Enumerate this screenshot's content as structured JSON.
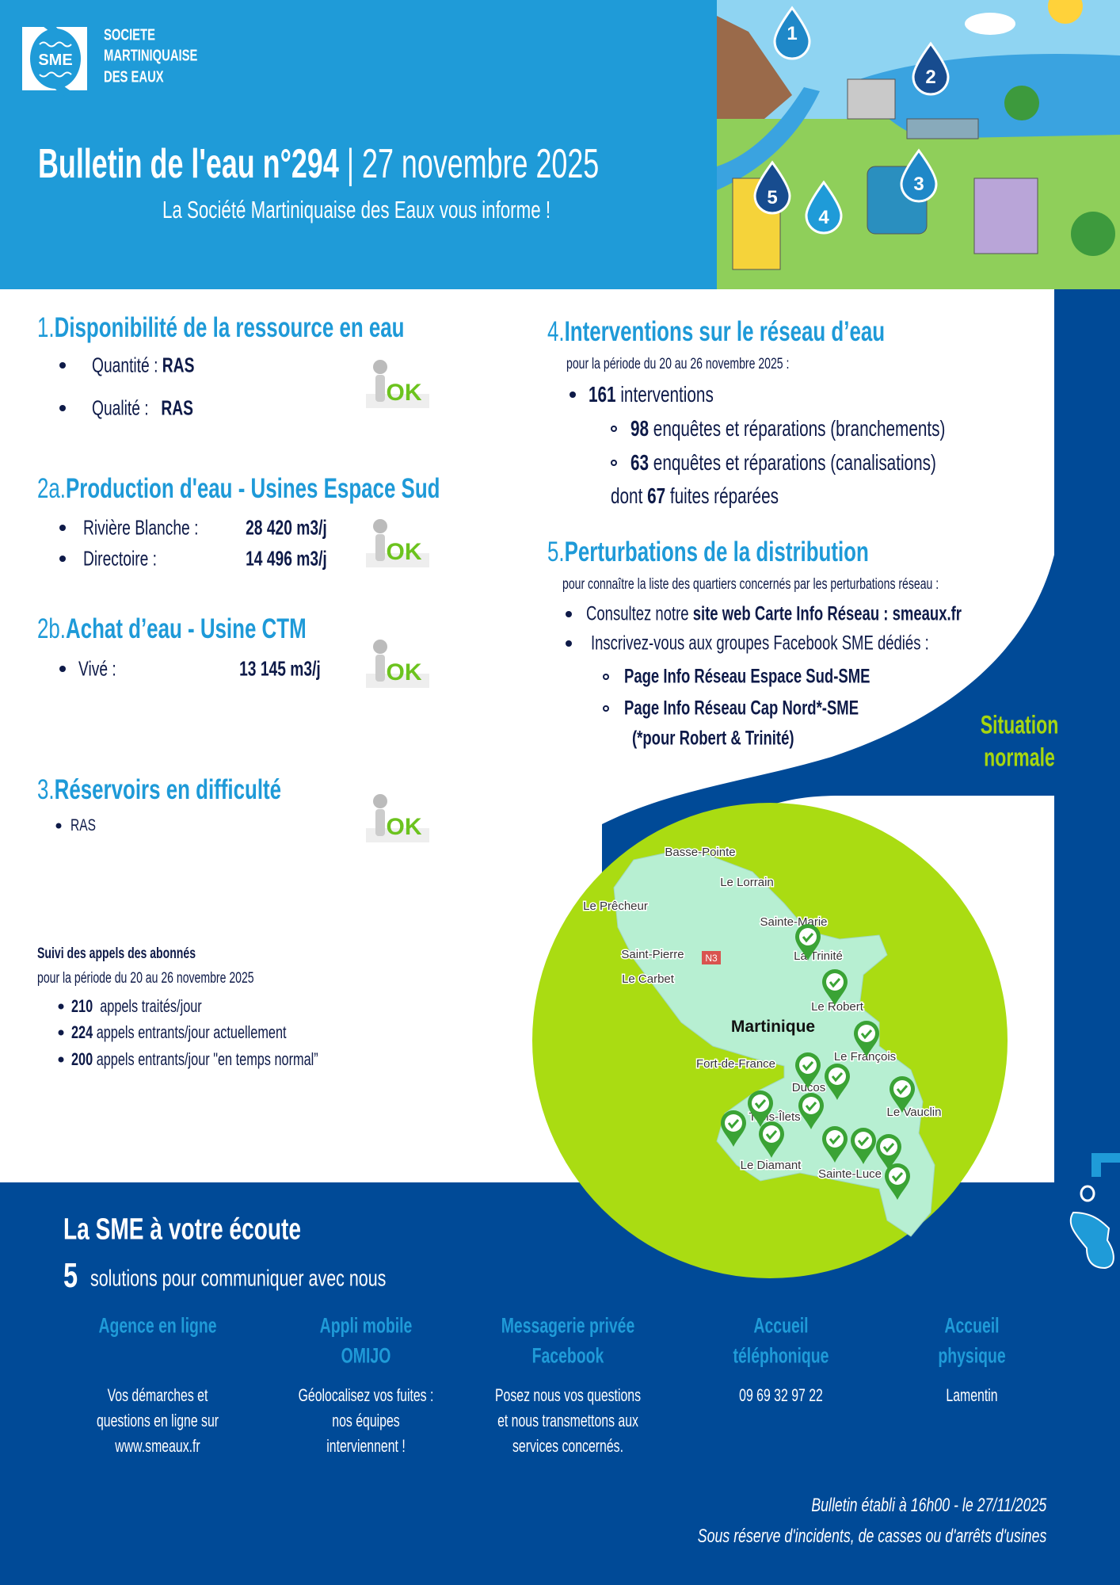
{
  "header": {
    "logo_text": "SME",
    "org_lines": [
      "SOCIETE",
      "MARTINIQUAISE",
      "DES EAUX"
    ],
    "title_bold": "Bulletin de l'eau n°294",
    "title_rest": " | 27 novembre 2025",
    "subtitle": "La Société Martiniquaise des Eaux vous informe !",
    "illustration_drops": [
      "1",
      "2",
      "3",
      "4",
      "5"
    ]
  },
  "ok_label": "OK",
  "section1": {
    "num": "1.",
    "title": "Disponibilité de la ressource en eau",
    "items": [
      {
        "label": "Quantité : ",
        "value": "RAS"
      },
      {
        "label": "Qualité : ",
        "value": "RAS"
      }
    ]
  },
  "section2a": {
    "num": "2a.",
    "title": "Production d'eau - Usines Espace Sud",
    "items": [
      {
        "label": "Rivière Blanche :",
        "value": "28 420 m3/j"
      },
      {
        "label": "Directoire :",
        "value": "14 496 m3/j"
      }
    ]
  },
  "section2b": {
    "num": "2b.",
    "title": "Achat d’eau - Usine CTM",
    "items": [
      {
        "label": "Vivé :",
        "value": "13 145 m3/j"
      }
    ]
  },
  "section3": {
    "num": "3.",
    "title": "Réservoirs en difficulté",
    "items": [
      "RAS"
    ]
  },
  "calls": {
    "title": "Suivi des appels des abonnés",
    "period": "pour la période du 20 au 26 novembre 2025",
    "items": [
      {
        "value": "210",
        "text": "  appels traités/jour"
      },
      {
        "value": "224",
        "text": " appels entrants/jour actuellement"
      },
      {
        "value": "200",
        "text": " appels entrants/jour \"en temps normal”"
      }
    ]
  },
  "section4": {
    "num": "4.",
    "title": "Interventions sur le réseau d’eau",
    "period": "pour la période du 20 au 26 novembre 2025 :",
    "total_value": "161",
    "total_text": " interventions",
    "sub": [
      {
        "value": "98",
        "text": " enquêtes et réparations (branchements)"
      },
      {
        "value": "63",
        "text": " enquêtes et réparations (canalisations)"
      }
    ],
    "leaks_prefix": "dont ",
    "leaks_value": "67",
    "leaks_text": " fuites réparées"
  },
  "section5": {
    "num": "5.",
    "title": "Perturbations de la distribution",
    "intro": "pour connaître la liste des quartiers concernés par les perturbations réseau :",
    "item1_text": "Consultez notre ",
    "item1_bold": "site web Carte Info Réseau : smeaux.fr",
    "item2_text": "Inscrivez-vous aux groupes Facebook SME dédiés :",
    "pages": [
      "Page Info Réseau Espace Sud-SME",
      "Page Info Réseau Cap Nord*-SME"
    ],
    "note": "(*pour Robert & Trinité)"
  },
  "situation": {
    "line1": "Situation",
    "line2": "normale",
    "color": "#a6d60f"
  },
  "map": {
    "title": "Martinique",
    "road_badge": "N3",
    "places": [
      "Basse-Pointe",
      "Le Lorrain",
      "Le Prêcheur",
      "Sainte-Marie",
      "Saint-Pierre",
      "La Trinité",
      "Le Carbet",
      "Le Robert",
      "Le François",
      "Fort-de-France",
      "Ducos",
      "Le Vauclin",
      "Trois-Îlets",
      "Le Diamant",
      "Sainte-Luce"
    ],
    "marker_icon": "check-pin-icon",
    "marker_color": "#3aa335"
  },
  "footer": {
    "title": "La SME à votre écoute",
    "count": "5",
    "count_text": "solutions pour communiquer avec nous",
    "columns": [
      {
        "heading": [
          "Agence en ligne"
        ],
        "body": [
          "Vos démarches et",
          "questions en ligne sur",
          "www.smeaux.fr"
        ]
      },
      {
        "heading": [
          "Appli mobile",
          "OMIJO"
        ],
        "body": [
          "Géolocalisez vos fuites :",
          "nos équipes",
          "interviennent !"
        ]
      },
      {
        "heading": [
          "Messagerie privée",
          "Facebook"
        ],
        "body": [
          "Posez nous vos questions",
          "et nous transmettons aux",
          "services concernés."
        ]
      },
      {
        "heading": [
          "Accueil",
          "téléphonique"
        ],
        "body": [
          "09 69 32 97 22"
        ]
      },
      {
        "heading": [
          "Accueil",
          "physique"
        ],
        "body": [
          "Lamentin"
        ]
      }
    ],
    "issued": "Bulletin établi à 16h00 - le 27/11/2025",
    "disclaimer": "Sous réserve d'incidents, de casses ou d'arrêts d'usines"
  },
  "colors": {
    "header_blue": "#1f9bd8",
    "dark_blue": "#004a97",
    "heading_blue": "#1e9ad8",
    "map_circle": "#aadc12",
    "text": "#0e1a48"
  }
}
